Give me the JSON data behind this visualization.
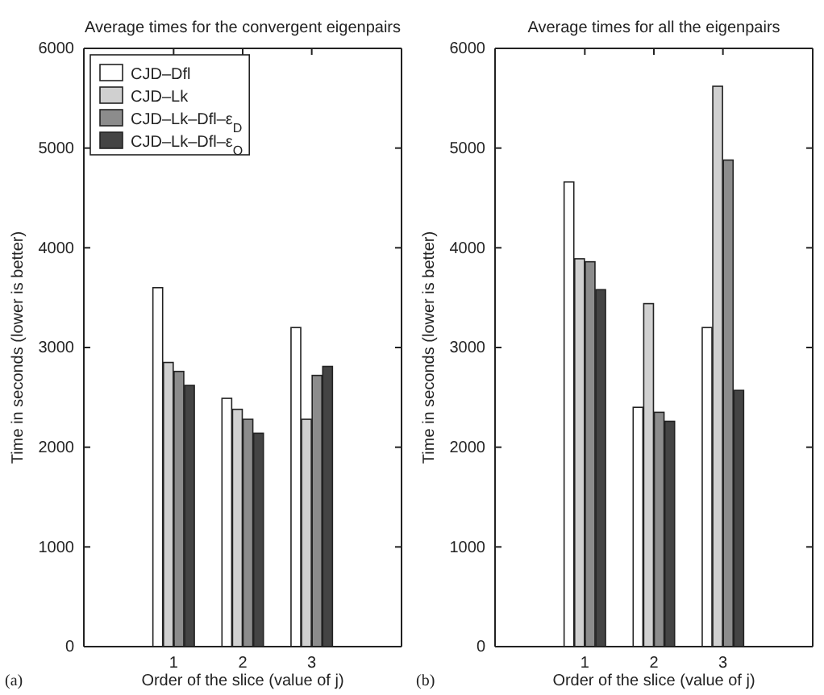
{
  "chart_data": [
    {
      "type": "bar",
      "title": "Average times for the convergent eigenpairs",
      "xlabel": "Order of the slice (value of j)",
      "ylabel": "Time in seconds (lower is better)",
      "annotations": [
        "(a)"
      ],
      "categories": [
        "1",
        "2",
        "3"
      ],
      "ylim": [
        0,
        6000
      ],
      "yticks": [
        0,
        1000,
        2000,
        3000,
        4000,
        5000,
        6000
      ],
      "legend": "top left",
      "series": [
        {
          "name": "CJD–Dfl",
          "color": "#ffffff",
          "values": [
            3600,
            2490,
            3200
          ]
        },
        {
          "name": "CJD–Lk",
          "color": "#d0d0d0",
          "values": [
            2850,
            2380,
            2280
          ]
        },
        {
          "name": "CJD–Lk–Dfl–ε$_{D}$",
          "color": "#8c8c8c",
          "values": [
            2760,
            2280,
            2720
          ]
        },
        {
          "name": "CJD–Lk–Dfl–ε$_{O}$",
          "color": "#444444",
          "values": [
            2620,
            2140,
            2810
          ]
        }
      ]
    },
    {
      "type": "bar",
      "title": "Average times for all the eigenpairs",
      "xlabel": "Order of the slice (value of j)",
      "ylabel": "Time in seconds (lower is better)",
      "annotations": [
        "(b)"
      ],
      "categories": [
        "1",
        "2",
        "3"
      ],
      "ylim": [
        0,
        6000
      ],
      "yticks": [
        0,
        1000,
        2000,
        3000,
        4000,
        5000,
        6000
      ],
      "series": [
        {
          "color": "#ffffff",
          "values": [
            4660,
            2400,
            3200
          ]
        },
        {
          "color": "#d0d0d0",
          "values": [
            3890,
            3440,
            5620
          ]
        },
        {
          "color": "#8c8c8c",
          "values": [
            3860,
            2350,
            4880
          ]
        },
        {
          "color": "#444444",
          "values": [
            3580,
            2260,
            2570
          ]
        }
      ]
    }
  ]
}
